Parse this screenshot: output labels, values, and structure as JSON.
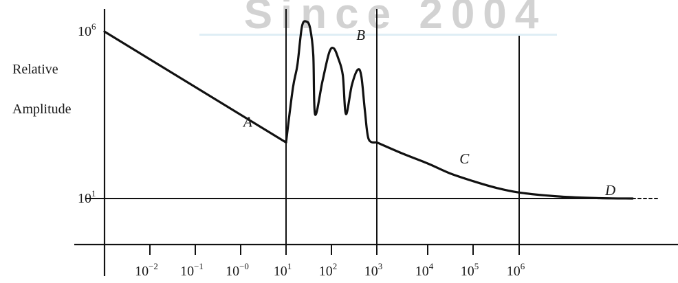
{
  "watermark": {
    "text": "Since 2004"
  },
  "chart_data": {
    "type": "line",
    "title": "",
    "xlabel": "",
    "ylabel": "Relative\nAmplitude",
    "ylabel_lines": [
      "Relative",
      "Amplitude"
    ],
    "x_scale": "log",
    "y_scale": "log",
    "x_tick_labels": [
      {
        "base": "10",
        "exp": "−2"
      },
      {
        "base": "10",
        "exp": "−1"
      },
      {
        "base": "10",
        "exp": "−0"
      },
      {
        "base": "10",
        "exp": "1"
      },
      {
        "base": "10",
        "exp": "2"
      },
      {
        "base": "10",
        "exp": "3"
      },
      {
        "base": "10",
        "exp": "4"
      },
      {
        "base": "10",
        "exp": "5"
      },
      {
        "base": "10",
        "exp": "6"
      }
    ],
    "y_tick_labels": [
      {
        "base": "10",
        "exp": "6"
      },
      {
        "base": "10",
        "exp": "1"
      }
    ],
    "region_labels": [
      "A",
      "B",
      "C",
      "D"
    ],
    "series": [
      {
        "label": "A",
        "points": [
          [
            -3.0,
            6.0
          ],
          [
            1.0,
            2.68
          ]
        ]
      },
      {
        "label": "B",
        "points": [
          [
            1.0,
            2.68
          ],
          [
            1.15,
            4.3
          ],
          [
            1.25,
            5.0
          ],
          [
            1.35,
            6.15
          ],
          [
            1.45,
            6.3
          ],
          [
            1.53,
            6.1
          ],
          [
            1.6,
            5.3
          ],
          [
            1.64,
            3.52
          ],
          [
            1.8,
            4.5
          ],
          [
            1.95,
            5.37
          ],
          [
            2.05,
            5.5
          ],
          [
            2.15,
            5.2
          ],
          [
            2.25,
            4.7
          ],
          [
            2.32,
            3.53
          ],
          [
            2.45,
            4.4
          ],
          [
            2.58,
            4.86
          ],
          [
            2.66,
            4.65
          ],
          [
            2.74,
            3.6
          ],
          [
            2.82,
            2.78
          ],
          [
            3.0,
            2.68
          ]
        ]
      },
      {
        "label": "C",
        "points": [
          [
            3.0,
            2.68
          ],
          [
            3.5,
            2.35
          ],
          [
            4.0,
            2.05
          ],
          [
            4.5,
            1.75
          ],
          [
            5.0,
            1.52
          ],
          [
            5.5,
            1.32
          ],
          [
            6.0,
            1.18
          ],
          [
            6.7,
            1.06
          ],
          [
            7.4,
            1.01
          ],
          [
            8.0,
            1.0
          ]
        ]
      },
      {
        "label": "D",
        "points": [
          [
            8.0,
            1.0
          ],
          [
            8.4,
            1.0
          ]
        ],
        "style": "dashed"
      }
    ],
    "reference_lines": {
      "vertical_at_x": [
        1,
        3,
        6
      ],
      "horizontal_at_y": [
        1
      ]
    },
    "grid": false,
    "legend": "none"
  }
}
